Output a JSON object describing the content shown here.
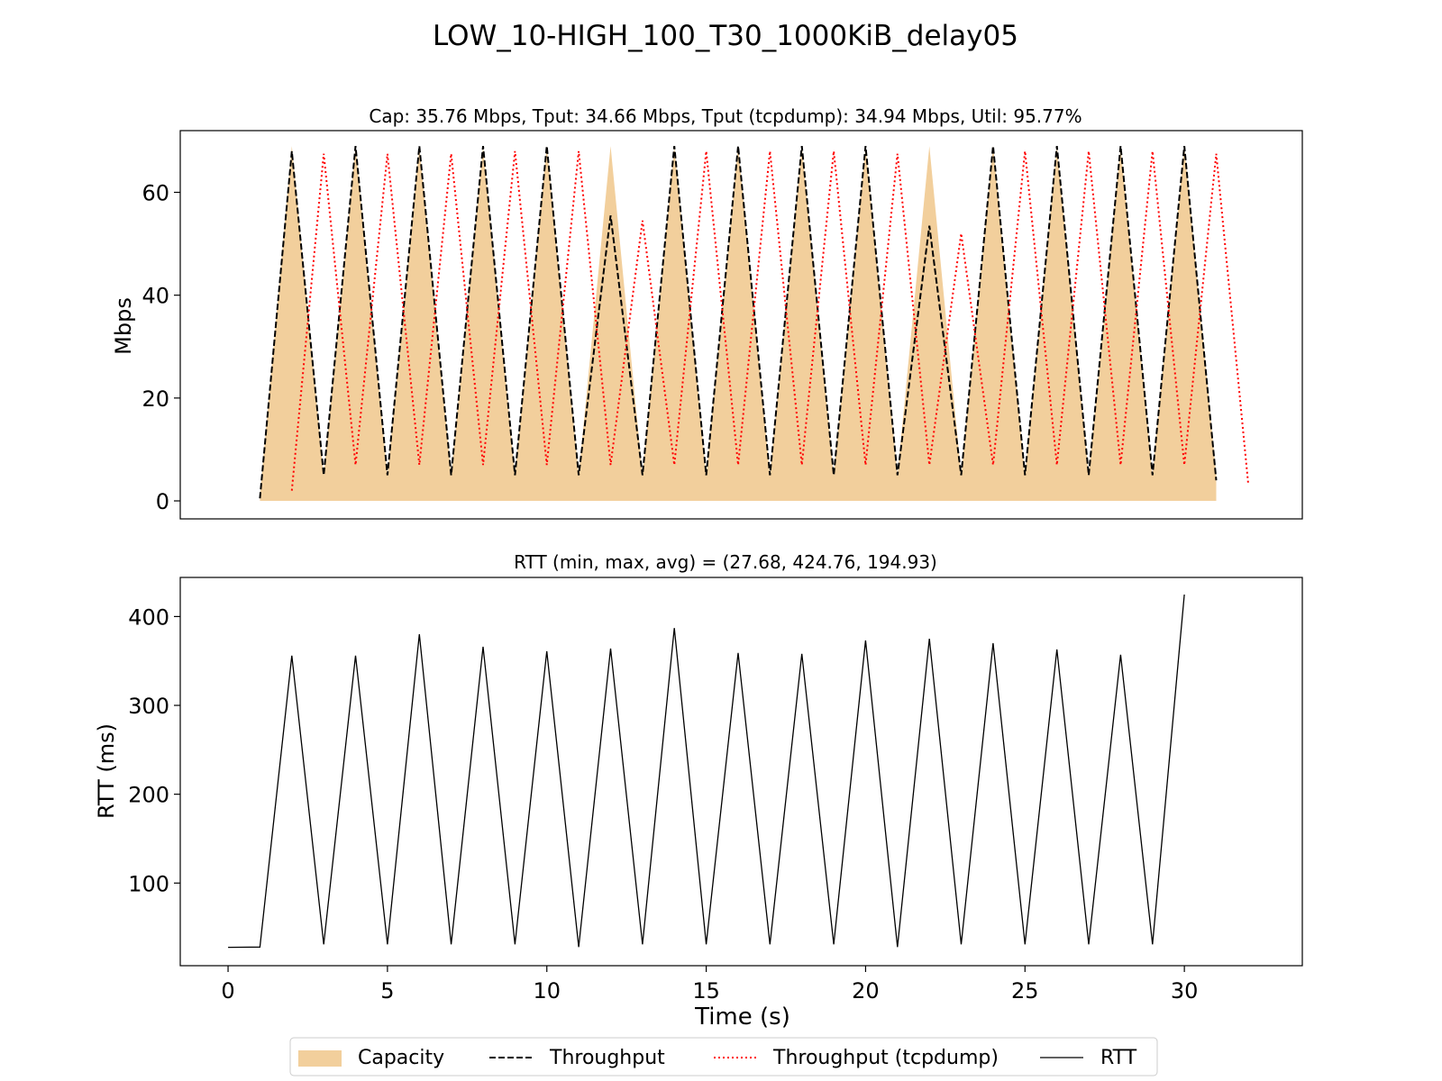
{
  "figure_title": "LOW_10-HIGH_100_T30_1000KiB_delay05",
  "colors": {
    "capacity": "#f2cf9c",
    "throughput": "#000000",
    "tcpdump": "#ff0000",
    "rtt": "#000000"
  },
  "legend": {
    "placement": "bottom-center",
    "entries": [
      "Capacity",
      "Throughput",
      "Throughput (tcpdump)",
      "RTT"
    ]
  },
  "chart_data": [
    {
      "type": "area",
      "title": "Cap: 35.76 Mbps, Tput: 34.66 Mbps, Tput (tcpdump): 34.94 Mbps, Util: 95.77%",
      "xlabel": "",
      "ylabel": "Mbps",
      "xlim": [
        -1.5,
        33.7
      ],
      "ylim": [
        -3.5,
        72
      ],
      "yticks": [
        0,
        20,
        40,
        60
      ],
      "grid": false,
      "series": [
        {
          "name": "Capacity",
          "style": "fill",
          "x": [
            1,
            2,
            3,
            4,
            5,
            6,
            7,
            8,
            9,
            10,
            11,
            12,
            13,
            14,
            15,
            16,
            17,
            18,
            19,
            20,
            21,
            22,
            23,
            24,
            25,
            26,
            27,
            28,
            29,
            30,
            31
          ],
          "values": [
            1,
            69,
            5,
            69,
            5,
            69,
            5,
            69,
            5,
            69,
            5,
            69,
            5,
            69,
            5,
            69,
            5,
            69,
            5,
            69,
            5,
            69,
            5,
            69,
            5,
            69,
            5,
            69,
            5,
            69,
            5
          ]
        },
        {
          "name": "Throughput",
          "style": "dashed",
          "x": [
            1,
            2,
            3,
            4,
            5,
            6,
            7,
            8,
            9,
            10,
            11,
            12,
            13,
            14,
            15,
            16,
            17,
            18,
            19,
            20,
            21,
            22,
            23,
            24,
            25,
            26,
            27,
            28,
            29,
            30,
            31
          ],
          "values": [
            0.5,
            68,
            5,
            69,
            5,
            69,
            5,
            69,
            5,
            69,
            5,
            55.5,
            5,
            69,
            5,
            69,
            5,
            69,
            5,
            69,
            5,
            53.5,
            5,
            69,
            5,
            69,
            5,
            69,
            5,
            69,
            4
          ]
        },
        {
          "name": "Throughput (tcpdump)",
          "style": "dotted",
          "x": [
            2,
            3,
            4,
            5,
            6,
            7,
            8,
            9,
            10,
            11,
            12,
            13,
            14,
            15,
            16,
            17,
            18,
            19,
            20,
            21,
            22,
            23,
            24,
            25,
            26,
            27,
            28,
            29,
            30,
            31,
            32
          ],
          "values": [
            2,
            67.5,
            7,
            67.5,
            7,
            67.5,
            7,
            68,
            7,
            68,
            7,
            54.5,
            7,
            68,
            7,
            68,
            7,
            68,
            7,
            67.5,
            7,
            52,
            7,
            68,
            7,
            68,
            7,
            68,
            7,
            67.5,
            3.5
          ]
        }
      ]
    },
    {
      "type": "line",
      "title": "RTT (min, max, avg) = (27.68, 424.76, 194.93)",
      "xlabel": "Time (s)",
      "ylabel": "RTT (ms)",
      "xlim": [
        -1.5,
        33.7
      ],
      "ylim": [
        7,
        444
      ],
      "xticks": [
        0,
        5,
        10,
        15,
        20,
        25,
        30
      ],
      "yticks": [
        100,
        200,
        300,
        400
      ],
      "grid": false,
      "series": [
        {
          "name": "RTT",
          "style": "solid",
          "x": [
            0,
            1,
            2,
            3,
            4,
            5,
            6,
            7,
            8,
            9,
            10,
            11,
            12,
            13,
            14,
            15,
            16,
            17,
            18,
            19,
            20,
            21,
            22,
            23,
            24,
            25,
            26,
            27,
            28,
            29,
            30
          ],
          "values": [
            27.7,
            28,
            356,
            31,
            356,
            31,
            380,
            31,
            366,
            31,
            361,
            28,
            364,
            31,
            387,
            31,
            359,
            31,
            358,
            31,
            373,
            28,
            375,
            31,
            370,
            31,
            363,
            31,
            357,
            31,
            424.76
          ]
        }
      ]
    }
  ]
}
